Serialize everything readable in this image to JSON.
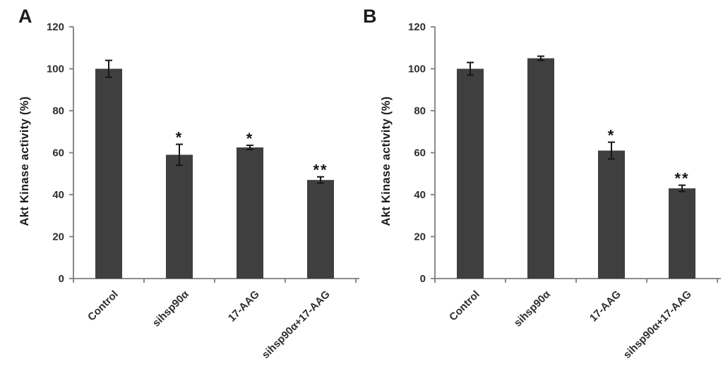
{
  "figure": {
    "background": "#ffffff",
    "bar_color": "#3f3f3f",
    "axis_color": "#7d7d7d",
    "text_color": "#2e2e2e",
    "error_bar_color": "#161616"
  },
  "chart_data": [
    {
      "type": "bar",
      "panel": "A",
      "title": "",
      "xlabel": "",
      "ylabel": "Akt Kinase activity (%)",
      "categories": [
        "Control",
        "sihsp90α",
        "17-AAG",
        "sihsp90α+17-AAG"
      ],
      "values": [
        100,
        59,
        62.5,
        47
      ],
      "errors": [
        4,
        5,
        1,
        1.5
      ],
      "significance": [
        "",
        "*",
        "*",
        "**"
      ],
      "ylim": [
        0,
        120
      ],
      "yticks": [
        0,
        20,
        40,
        60,
        80,
        100,
        120
      ],
      "grid": false,
      "legend": "none"
    },
    {
      "type": "bar",
      "panel": "B",
      "title": "",
      "xlabel": "",
      "ylabel": "Akt Kinase activity (%)",
      "categories": [
        "Control",
        "sihsp90α",
        "17-AAG",
        "sihsp90α+17-AAG"
      ],
      "values": [
        100,
        105,
        61,
        43
      ],
      "errors": [
        3,
        1,
        4,
        1.5
      ],
      "significance": [
        "",
        "",
        "*",
        "**"
      ],
      "ylim": [
        0,
        120
      ],
      "yticks": [
        0,
        20,
        40,
        60,
        80,
        100,
        120
      ],
      "grid": false,
      "legend": "none"
    }
  ]
}
